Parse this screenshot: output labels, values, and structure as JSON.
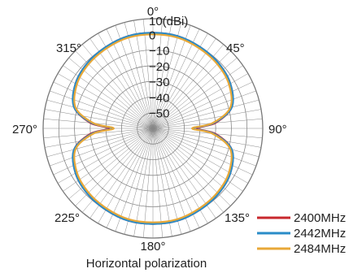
{
  "chart_data": {
    "type": "polar",
    "title": "Horizontal polarization",
    "unit": "(dBi)",
    "r_ticks": [
      "10",
      "0",
      "-10",
      "-20",
      "-30",
      "-40",
      "-50"
    ],
    "r_range": [
      -60,
      10
    ],
    "angle_labels": [
      {
        "deg": 0,
        "text": "0°"
      },
      {
        "deg": 45,
        "text": "45°"
      },
      {
        "deg": 90,
        "text": "90°"
      },
      {
        "deg": 135,
        "text": "135°"
      },
      {
        "deg": 180,
        "text": "180°"
      },
      {
        "deg": 225,
        "text": "225°"
      },
      {
        "deg": 270,
        "text": "270°"
      },
      {
        "deg": 315,
        "text": "315°"
      }
    ],
    "angles": [
      0,
      15,
      30,
      45,
      60,
      75,
      85,
      90,
      95,
      105,
      120,
      135,
      150,
      165,
      180,
      195,
      210,
      225,
      240,
      255,
      265,
      270,
      275,
      285,
      300,
      315,
      330,
      345
    ],
    "series": [
      {
        "name": "2400MHz",
        "color": "#c8282d",
        "values": [
          1,
          1,
          0,
          -1,
          -3,
          -8,
          -20,
          -32,
          -20,
          -8,
          -3,
          -1,
          0,
          1,
          1,
          1,
          0,
          -1,
          -3,
          -8,
          -20,
          -32,
          -20,
          -8,
          -3,
          -1,
          0,
          1
        ]
      },
      {
        "name": "2442MHz",
        "color": "#2a8cc8",
        "values": [
          1,
          1,
          0,
          -1,
          -3,
          -8,
          -21,
          -34,
          -21,
          -8,
          -3,
          -1,
          0,
          1,
          1,
          1,
          0,
          -1,
          -3,
          -8,
          -21,
          -34,
          -21,
          -8,
          -3,
          -1,
          0,
          1
        ]
      },
      {
        "name": "2484MHz",
        "color": "#e8a838",
        "values": [
          0,
          0,
          -1,
          -2,
          -4,
          -9,
          -22,
          -35,
          -22,
          -9,
          -4,
          -2,
          -1,
          0,
          0,
          0,
          -1,
          -2,
          -4,
          -9,
          -22,
          -35,
          -22,
          -9,
          -4,
          -2,
          -1,
          0
        ]
      }
    ],
    "legend_position": "bottom-right",
    "grid": true
  }
}
